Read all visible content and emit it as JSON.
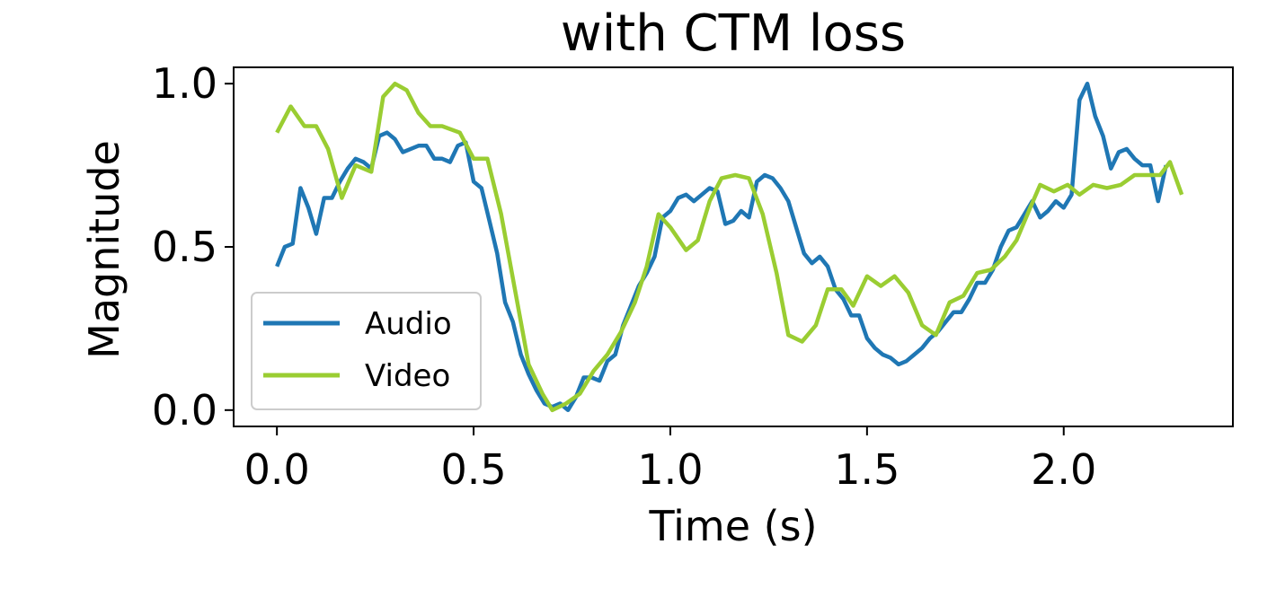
{
  "chart_data": {
    "type": "line",
    "title": "with CTM loss",
    "xlabel": "Time (s)",
    "ylabel": "Magnitude",
    "xlim": [
      -0.11,
      2.43
    ],
    "ylim": [
      -0.05,
      1.05
    ],
    "xticks": [
      0.0,
      0.5,
      1.0,
      1.5,
      2.0
    ],
    "xtick_labels": [
      "0.0",
      "0.5",
      "1.0",
      "1.5",
      "2.0"
    ],
    "yticks": [
      0.0,
      0.5,
      1.0
    ],
    "ytick_labels": [
      "0.0",
      "0.5",
      "1.0"
    ],
    "grid": false,
    "legend_position": "lower-left",
    "series": [
      {
        "name": "Audio",
        "color": "#1f77b4",
        "points": [
          [
            0.0,
            0.44
          ],
          [
            0.02,
            0.5
          ],
          [
            0.04,
            0.51
          ],
          [
            0.06,
            0.68
          ],
          [
            0.08,
            0.62
          ],
          [
            0.1,
            0.54
          ],
          [
            0.12,
            0.65
          ],
          [
            0.14,
            0.65
          ],
          [
            0.16,
            0.7
          ],
          [
            0.18,
            0.74
          ],
          [
            0.2,
            0.77
          ],
          [
            0.22,
            0.76
          ],
          [
            0.24,
            0.74
          ],
          [
            0.26,
            0.84
          ],
          [
            0.28,
            0.85
          ],
          [
            0.3,
            0.83
          ],
          [
            0.32,
            0.79
          ],
          [
            0.34,
            0.8
          ],
          [
            0.36,
            0.81
          ],
          [
            0.38,
            0.81
          ],
          [
            0.4,
            0.77
          ],
          [
            0.42,
            0.77
          ],
          [
            0.44,
            0.76
          ],
          [
            0.46,
            0.81
          ],
          [
            0.48,
            0.82
          ],
          [
            0.5,
            0.7
          ],
          [
            0.52,
            0.68
          ],
          [
            0.54,
            0.58
          ],
          [
            0.56,
            0.48
          ],
          [
            0.58,
            0.33
          ],
          [
            0.6,
            0.27
          ],
          [
            0.62,
            0.17
          ],
          [
            0.64,
            0.11
          ],
          [
            0.66,
            0.06
          ],
          [
            0.68,
            0.02
          ],
          [
            0.7,
            0.01
          ],
          [
            0.72,
            0.02
          ],
          [
            0.74,
            0.0
          ],
          [
            0.76,
            0.04
          ],
          [
            0.78,
            0.1
          ],
          [
            0.8,
            0.1
          ],
          [
            0.82,
            0.09
          ],
          [
            0.84,
            0.15
          ],
          [
            0.86,
            0.17
          ],
          [
            0.88,
            0.26
          ],
          [
            0.9,
            0.32
          ],
          [
            0.92,
            0.38
          ],
          [
            0.94,
            0.42
          ],
          [
            0.96,
            0.47
          ],
          [
            0.98,
            0.59
          ],
          [
            1.0,
            0.61
          ],
          [
            1.02,
            0.65
          ],
          [
            1.04,
            0.66
          ],
          [
            1.06,
            0.64
          ],
          [
            1.08,
            0.66
          ],
          [
            1.1,
            0.68
          ],
          [
            1.12,
            0.67
          ],
          [
            1.14,
            0.57
          ],
          [
            1.16,
            0.58
          ],
          [
            1.18,
            0.61
          ],
          [
            1.2,
            0.59
          ],
          [
            1.22,
            0.7
          ],
          [
            1.24,
            0.72
          ],
          [
            1.26,
            0.71
          ],
          [
            1.28,
            0.68
          ],
          [
            1.3,
            0.64
          ],
          [
            1.32,
            0.56
          ],
          [
            1.34,
            0.48
          ],
          [
            1.36,
            0.45
          ],
          [
            1.38,
            0.47
          ],
          [
            1.4,
            0.44
          ],
          [
            1.42,
            0.37
          ],
          [
            1.44,
            0.34
          ],
          [
            1.46,
            0.29
          ],
          [
            1.48,
            0.29
          ],
          [
            1.5,
            0.22
          ],
          [
            1.52,
            0.19
          ],
          [
            1.54,
            0.17
          ],
          [
            1.56,
            0.16
          ],
          [
            1.58,
            0.14
          ],
          [
            1.6,
            0.15
          ],
          [
            1.62,
            0.17
          ],
          [
            1.64,
            0.19
          ],
          [
            1.66,
            0.22
          ],
          [
            1.68,
            0.24
          ],
          [
            1.7,
            0.27
          ],
          [
            1.72,
            0.3
          ],
          [
            1.74,
            0.3
          ],
          [
            1.76,
            0.34
          ],
          [
            1.78,
            0.39
          ],
          [
            1.8,
            0.39
          ],
          [
            1.82,
            0.43
          ],
          [
            1.84,
            0.5
          ],
          [
            1.86,
            0.55
          ],
          [
            1.88,
            0.56
          ],
          [
            1.9,
            0.6
          ],
          [
            1.92,
            0.64
          ],
          [
            1.94,
            0.59
          ],
          [
            1.96,
            0.61
          ],
          [
            1.98,
            0.64
          ],
          [
            2.0,
            0.62
          ],
          [
            2.02,
            0.66
          ],
          [
            2.04,
            0.95
          ],
          [
            2.06,
            1.0
          ],
          [
            2.08,
            0.9
          ],
          [
            2.1,
            0.84
          ],
          [
            2.12,
            0.74
          ],
          [
            2.14,
            0.79
          ],
          [
            2.16,
            0.8
          ],
          [
            2.18,
            0.77
          ],
          [
            2.2,
            0.75
          ],
          [
            2.22,
            0.75
          ],
          [
            2.24,
            0.64
          ],
          [
            2.26,
            0.75
          ]
        ]
      },
      {
        "name": "Video",
        "color": "#9acd32",
        "points": [
          [
            0.0,
            0.85
          ],
          [
            0.035,
            0.93
          ],
          [
            0.07,
            0.87
          ],
          [
            0.1,
            0.87
          ],
          [
            0.13,
            0.8
          ],
          [
            0.165,
            0.65
          ],
          [
            0.2,
            0.75
          ],
          [
            0.24,
            0.73
          ],
          [
            0.27,
            0.96
          ],
          [
            0.3,
            1.0
          ],
          [
            0.33,
            0.98
          ],
          [
            0.36,
            0.91
          ],
          [
            0.39,
            0.87
          ],
          [
            0.42,
            0.87
          ],
          [
            0.465,
            0.85
          ],
          [
            0.5,
            0.77
          ],
          [
            0.535,
            0.77
          ],
          [
            0.57,
            0.6
          ],
          [
            0.605,
            0.37
          ],
          [
            0.64,
            0.14
          ],
          [
            0.675,
            0.05
          ],
          [
            0.7,
            0.0
          ],
          [
            0.735,
            0.02
          ],
          [
            0.77,
            0.05
          ],
          [
            0.805,
            0.12
          ],
          [
            0.84,
            0.17
          ],
          [
            0.875,
            0.24
          ],
          [
            0.91,
            0.33
          ],
          [
            0.94,
            0.44
          ],
          [
            0.97,
            0.6
          ],
          [
            1.0,
            0.56
          ],
          [
            1.04,
            0.49
          ],
          [
            1.07,
            0.52
          ],
          [
            1.1,
            0.64
          ],
          [
            1.13,
            0.71
          ],
          [
            1.165,
            0.72
          ],
          [
            1.2,
            0.71
          ],
          [
            1.235,
            0.6
          ],
          [
            1.27,
            0.42
          ],
          [
            1.3,
            0.23
          ],
          [
            1.335,
            0.21
          ],
          [
            1.37,
            0.26
          ],
          [
            1.4,
            0.37
          ],
          [
            1.435,
            0.37
          ],
          [
            1.465,
            0.32
          ],
          [
            1.5,
            0.41
          ],
          [
            1.535,
            0.38
          ],
          [
            1.57,
            0.41
          ],
          [
            1.605,
            0.36
          ],
          [
            1.64,
            0.26
          ],
          [
            1.675,
            0.23
          ],
          [
            1.71,
            0.33
          ],
          [
            1.745,
            0.35
          ],
          [
            1.78,
            0.42
          ],
          [
            1.815,
            0.43
          ],
          [
            1.85,
            0.47
          ],
          [
            1.88,
            0.52
          ],
          [
            1.915,
            0.62
          ],
          [
            1.94,
            0.69
          ],
          [
            1.975,
            0.67
          ],
          [
            2.01,
            0.69
          ],
          [
            2.04,
            0.66
          ],
          [
            2.075,
            0.69
          ],
          [
            2.11,
            0.68
          ],
          [
            2.145,
            0.69
          ],
          [
            2.18,
            0.72
          ],
          [
            2.21,
            0.72
          ],
          [
            2.245,
            0.72
          ],
          [
            2.27,
            0.76
          ],
          [
            2.3,
            0.66
          ]
        ]
      }
    ]
  }
}
